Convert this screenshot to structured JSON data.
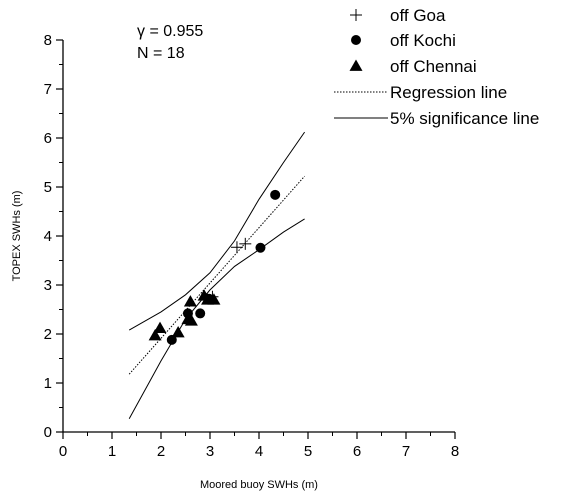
{
  "chart_data": {
    "type": "scatter",
    "xlabel": "Moored buoy SWHs (m)",
    "ylabel": "TOPEX SWHs (m)",
    "xlim": [
      0,
      8
    ],
    "ylim": [
      0,
      8
    ],
    "xticks": [
      "0",
      "1",
      "2",
      "3",
      "4",
      "5",
      "6",
      "7",
      "8"
    ],
    "yticks": [
      "0",
      "1",
      "2",
      "3",
      "4",
      "5",
      "6",
      "7",
      "8"
    ],
    "annotations": {
      "gamma": "γ = 0.955",
      "n": "N = 18"
    },
    "legend": {
      "placement": "top-right",
      "entries": [
        {
          "label": "off Goa",
          "marker": "plus"
        },
        {
          "label": "off Kochi",
          "marker": "circle"
        },
        {
          "label": "off Chennai",
          "marker": "triangle"
        },
        {
          "label": "Regression line",
          "line": "dotted"
        },
        {
          "label": "5% significance line",
          "line": "solid"
        }
      ]
    },
    "series": [
      {
        "name": "off Goa",
        "marker": "plus",
        "points": [
          [
            3.55,
            3.77
          ],
          [
            3.72,
            3.84
          ],
          [
            3.05,
            2.76
          ]
        ]
      },
      {
        "name": "off Kochi",
        "marker": "circle",
        "points": [
          [
            2.22,
            1.88
          ],
          [
            2.55,
            2.42
          ],
          [
            2.8,
            2.42
          ],
          [
            2.98,
            2.72
          ],
          [
            4.03,
            3.76
          ],
          [
            4.33,
            4.84
          ]
        ]
      },
      {
        "name": "off Chennai",
        "marker": "triangle",
        "points": [
          [
            1.88,
            1.97
          ],
          [
            1.98,
            2.12
          ],
          [
            2.35,
            2.03
          ],
          [
            2.55,
            2.3
          ],
          [
            2.6,
            2.66
          ],
          [
            2.88,
            2.78
          ],
          [
            2.95,
            2.7
          ],
          [
            3.08,
            2.7
          ],
          [
            2.62,
            2.27
          ]
        ]
      }
    ],
    "regression_line": {
      "x": [
        1.35,
        4.93
      ],
      "y": [
        1.18,
        5.22
      ]
    },
    "significance_lines": [
      {
        "x": [
          1.35,
          2.0,
          2.5,
          3.0,
          3.5,
          4.0,
          4.5,
          4.93
        ],
        "y": [
          2.08,
          2.45,
          2.8,
          3.25,
          3.9,
          4.75,
          5.5,
          6.12
        ]
      },
      {
        "x": [
          1.35,
          2.0,
          2.5,
          3.0,
          3.5,
          4.0,
          4.5,
          4.93
        ],
        "y": [
          0.27,
          1.45,
          2.3,
          2.9,
          3.38,
          3.72,
          4.08,
          4.35
        ]
      }
    ]
  }
}
